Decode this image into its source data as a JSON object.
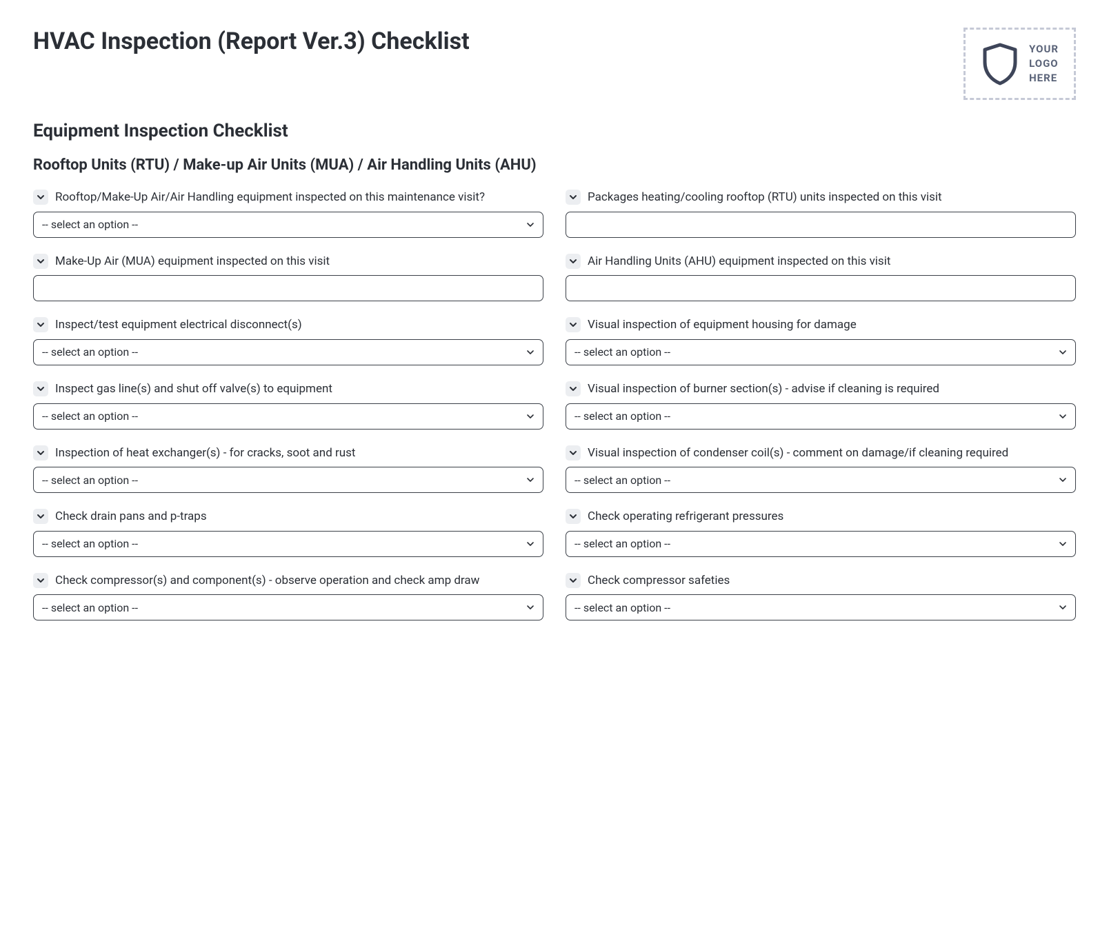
{
  "page_title": "HVAC Inspection (Report Ver.3) Checklist",
  "logo_placeholder": {
    "line1": "YOUR",
    "line2": "LOGO",
    "line3": "HERE",
    "shield_color": "#3e4559",
    "border_color": "#c5c9d6"
  },
  "section_title": "Equipment Inspection Checklist",
  "subsection_title": "Rooftop Units (RTU) / Make-up Air Units (MUA) / Air Handling Units (AHU)",
  "select_placeholder": "-- select an option --",
  "colors": {
    "text": "#2b2f36",
    "chev_bg": "#eceef1",
    "border": "#3a3f47",
    "logo_text": "#5a6378"
  },
  "left_items": [
    {
      "label": "Rooftop/Make-Up Air/Air Handling equipment inspected on this maintenance visit?",
      "type": "select"
    },
    {
      "label": "Make-Up Air (MUA) equipment inspected on this visit",
      "type": "input"
    },
    {
      "label": "Inspect/test equipment electrical disconnect(s)",
      "type": "select"
    },
    {
      "label": "Inspect gas line(s) and shut off valve(s) to equipment",
      "type": "select"
    },
    {
      "label": "Inspection of heat exchanger(s) - for cracks, soot and rust",
      "type": "select"
    },
    {
      "label": "Check drain pans and p-traps",
      "type": "select"
    },
    {
      "label": "Check compressor(s) and component(s) - observe operation and check amp draw",
      "type": "select"
    }
  ],
  "right_items": [
    {
      "label": "Packages heating/cooling rooftop (RTU) units inspected on this visit",
      "type": "input"
    },
    {
      "label": "Air Handling Units (AHU) equipment inspected on this visit",
      "type": "input"
    },
    {
      "label": "Visual inspection of equipment housing for damage",
      "type": "select"
    },
    {
      "label": "Visual inspection of burner section(s) - advise if cleaning is required",
      "type": "select"
    },
    {
      "label": "Visual inspection of condenser coil(s) - comment on damage/if cleaning required",
      "type": "select"
    },
    {
      "label": "Check operating refrigerant pressures",
      "type": "select"
    },
    {
      "label": "Check compressor safeties",
      "type": "select"
    }
  ]
}
